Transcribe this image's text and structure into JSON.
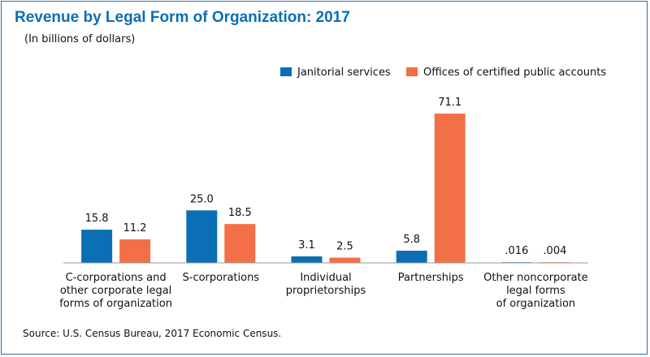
{
  "title": "Revenue by Legal Form of Organization: 2017",
  "subtitle": "(In billions of dollars)",
  "source": "Source: U.S. Census Bureau, 2017 Economic Census.",
  "chart_data": {
    "type": "bar",
    "categories": [
      [
        "C-corporations and",
        "other corporate legal",
        "forms of organization"
      ],
      [
        "S-corporations"
      ],
      [
        "Individual",
        "proprietorships"
      ],
      [
        "Partnerships"
      ],
      [
        "Other noncorporate",
        "legal forms",
        "of organization"
      ]
    ],
    "series": [
      {
        "name": "Janitorial services",
        "color": "#0a6fb5",
        "values": [
          15.8,
          25.0,
          3.1,
          5.8,
          0.016
        ],
        "labels": [
          "15.8",
          "25.0",
          "3.1",
          "5.8",
          ".016"
        ]
      },
      {
        "name": "Offices of certified public accounts",
        "color": "#f36f45",
        "values": [
          11.2,
          18.5,
          2.5,
          71.1,
          0.004
        ],
        "labels": [
          "11.2",
          "18.5",
          "2.5",
          "71.1",
          ".004"
        ]
      }
    ],
    "ylim": [
      0,
      71.1
    ],
    "grid": false,
    "legend_position": "top-right"
  }
}
